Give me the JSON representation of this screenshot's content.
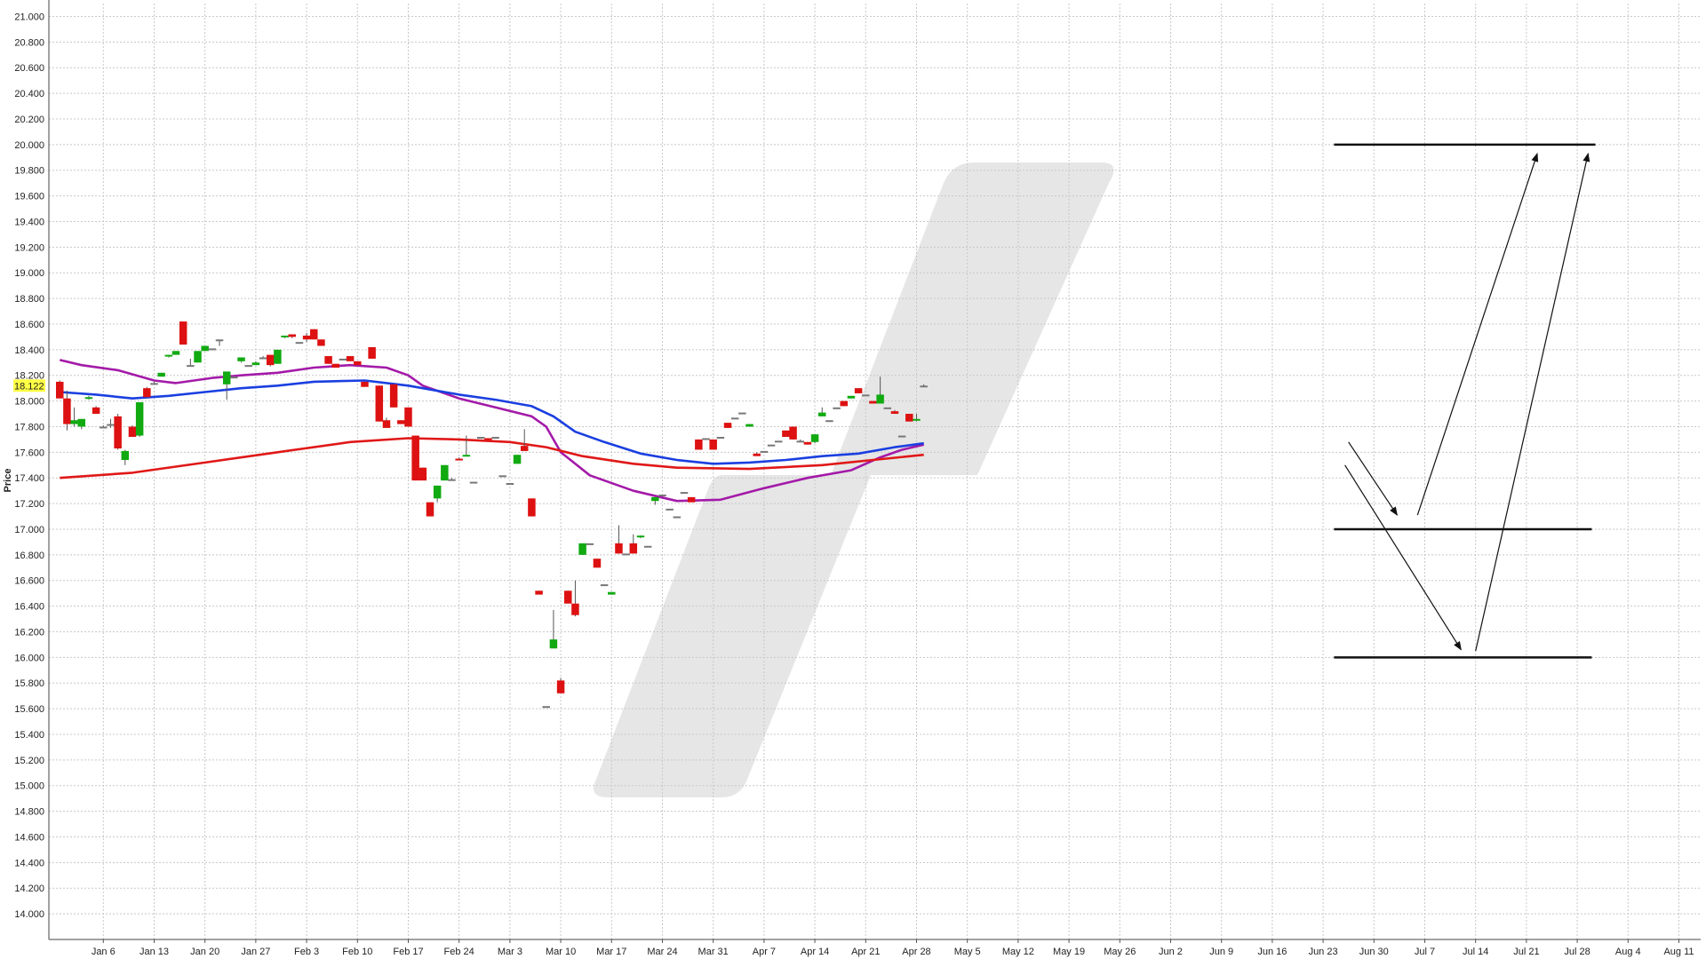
{
  "chart_data": {
    "type": "candlestick",
    "ylabel": "Price",
    "ylim": [
      13.8,
      21.1
    ],
    "y_ticks": [
      "14.000",
      "14.200",
      "14.400",
      "14.600",
      "14.800",
      "15.000",
      "15.200",
      "15.400",
      "15.600",
      "15.800",
      "16.000",
      "16.200",
      "16.400",
      "16.600",
      "16.800",
      "17.000",
      "17.200",
      "17.400",
      "17.600",
      "17.800",
      "18.000",
      "18.200",
      "18.400",
      "18.600",
      "18.800",
      "19.000",
      "19.200",
      "19.400",
      "19.600",
      "19.800",
      "20.000",
      "20.200",
      "20.400",
      "20.600",
      "20.800",
      "21.000"
    ],
    "x_ticks": [
      "Jan 6",
      "Jan 13",
      "Jan 20",
      "Jan 27",
      "Feb 3",
      "Feb 10",
      "Feb 17",
      "Feb 24",
      "Mar 3",
      "Mar 10",
      "Mar 17",
      "Mar 24",
      "Mar 31",
      "Apr 7",
      "Apr 14",
      "Apr 21",
      "Apr 28",
      "May 5",
      "May 12",
      "May 19",
      "May 26",
      "Jun 2",
      "Jun 9",
      "Jun 16",
      "Jun 23",
      "Jun 30",
      "Jul 7",
      "Jul 14",
      "Jul 21",
      "Jul 28",
      "Aug 4",
      "Aug 11"
    ],
    "x_tick_days": [
      6,
      13,
      20,
      27,
      34,
      41,
      48,
      55,
      62,
      69,
      76,
      83,
      90,
      97,
      104,
      111,
      118,
      125,
      132,
      139,
      146,
      153,
      160,
      167,
      174,
      181,
      188,
      195,
      202,
      209,
      216,
      223
    ],
    "xlim": [
      -1.5,
      226
    ],
    "current_price_label": "18.122",
    "colors": {
      "up": "#11aa11",
      "down": "#dd1111",
      "flat": "#777777",
      "ma_short": "#1a3fe0",
      "ma_mid": "#a31aa8",
      "ma_long": "#e01818",
      "label_bg": "#ffff44",
      "watermark": "#e6e6e6"
    },
    "candles": [
      [
        0,
        18.15,
        18.16,
        18.02,
        18.02
      ],
      [
        1,
        18.02,
        18.08,
        17.77,
        17.82
      ],
      [
        2,
        17.82,
        17.95,
        17.8,
        17.85
      ],
      [
        3,
        17.8,
        17.86,
        17.78,
        17.86
      ],
      [
        4,
        18.02,
        18.04,
        18.01,
        18.03
      ],
      [
        5,
        17.95,
        17.96,
        17.9,
        17.9
      ],
      [
        6,
        17.8,
        17.81,
        17.79,
        17.8
      ],
      [
        7,
        17.82,
        17.86,
        17.79,
        17.82
      ],
      [
        8,
        17.88,
        17.9,
        17.62,
        17.63
      ],
      [
        9,
        17.54,
        17.62,
        17.5,
        17.61
      ],
      [
        10,
        17.8,
        17.81,
        17.72,
        17.72
      ],
      [
        11,
        17.73,
        17.99,
        17.72,
        17.99
      ],
      [
        12,
        18.1,
        18.11,
        18.03,
        18.03
      ],
      [
        13,
        18.14,
        18.15,
        18.13,
        18.14
      ],
      [
        14,
        18.19,
        18.22,
        18.19,
        18.22
      ],
      [
        15,
        18.35,
        18.36,
        18.34,
        18.36
      ],
      [
        16,
        18.36,
        18.39,
        18.36,
        18.39
      ],
      [
        17,
        18.62,
        18.62,
        18.44,
        18.44
      ],
      [
        18,
        18.28,
        18.33,
        18.27,
        18.28
      ],
      [
        19,
        18.3,
        18.39,
        18.3,
        18.39
      ],
      [
        20,
        18.39,
        18.43,
        18.39,
        18.43
      ],
      [
        21,
        18.41,
        18.42,
        18.41,
        18.41
      ],
      [
        22,
        18.48,
        18.48,
        18.43,
        18.48
      ],
      [
        23,
        18.13,
        18.22,
        18.01,
        18.23
      ],
      [
        24,
        18.19,
        18.2,
        18.19,
        18.19
      ],
      [
        25,
        18.31,
        18.34,
        18.3,
        18.34
      ],
      [
        26,
        18.28,
        18.29,
        18.28,
        18.28
      ],
      [
        27,
        18.28,
        18.31,
        18.28,
        18.3
      ],
      [
        28,
        18.34,
        18.35,
        18.33,
        18.34
      ],
      [
        29,
        18.36,
        18.36,
        18.27,
        18.28
      ],
      [
        30,
        18.29,
        18.4,
        18.29,
        18.4
      ],
      [
        31,
        18.5,
        18.51,
        18.49,
        18.51
      ],
      [
        32,
        18.52,
        18.52,
        18.49,
        18.5
      ],
      [
        33,
        18.46,
        18.47,
        18.46,
        18.46
      ],
      [
        34,
        18.51,
        18.53,
        18.46,
        18.48
      ],
      [
        35,
        18.56,
        18.56,
        18.48,
        18.48
      ],
      [
        36,
        18.48,
        18.48,
        18.43,
        18.43
      ],
      [
        37,
        18.35,
        18.35,
        18.29,
        18.29
      ],
      [
        38,
        18.29,
        18.29,
        18.26,
        18.26
      ],
      [
        39,
        18.33,
        18.33,
        18.33,
        18.33
      ],
      [
        40,
        18.35,
        18.35,
        18.31,
        18.31
      ],
      [
        41,
        18.31,
        18.31,
        18.28,
        18.28
      ],
      [
        42,
        18.15,
        18.15,
        18.11,
        18.11
      ],
      [
        43,
        18.42,
        18.42,
        18.33,
        18.33
      ],
      [
        44,
        18.12,
        18.12,
        17.84,
        17.84
      ],
      [
        45,
        17.85,
        17.87,
        17.79,
        17.79
      ],
      [
        46,
        18.13,
        18.13,
        17.95,
        17.95
      ],
      [
        47,
        17.85,
        17.85,
        17.82,
        17.82
      ],
      [
        48,
        17.95,
        17.95,
        17.8,
        17.8
      ],
      [
        49,
        17.73,
        17.73,
        17.38,
        17.38
      ],
      [
        50,
        17.48,
        17.48,
        17.38,
        17.38
      ],
      [
        51,
        17.21,
        17.21,
        17.1,
        17.1
      ],
      [
        52,
        17.24,
        17.34,
        17.21,
        17.34
      ],
      [
        53,
        17.38,
        17.5,
        17.38,
        17.5
      ],
      [
        54,
        17.39,
        17.4,
        17.38,
        17.39
      ],
      [
        55,
        17.55,
        17.56,
        17.54,
        17.54
      ],
      [
        56,
        17.57,
        17.73,
        17.57,
        17.58
      ],
      [
        57,
        17.37,
        17.37,
        17.37,
        17.37
      ],
      [
        58,
        17.72,
        17.72,
        17.71,
        17.72
      ],
      [
        59,
        17.71,
        17.71,
        17.7,
        17.7
      ],
      [
        60,
        17.72,
        17.73,
        17.72,
        17.72
      ],
      [
        61,
        17.42,
        17.43,
        17.42,
        17.42
      ],
      [
        62,
        17.36,
        17.36,
        17.36,
        17.36
      ],
      [
        63,
        17.51,
        17.58,
        17.51,
        17.58
      ],
      [
        64,
        17.65,
        17.78,
        17.61,
        17.61
      ],
      [
        65,
        17.24,
        17.24,
        17.1,
        17.1
      ],
      [
        66,
        16.52,
        16.52,
        16.49,
        16.49
      ],
      [
        67,
        15.62,
        15.63,
        15.62,
        15.62
      ],
      [
        68,
        16.07,
        16.37,
        16.07,
        16.14
      ],
      [
        69,
        15.82,
        15.84,
        15.72,
        15.72
      ],
      [
        70,
        16.52,
        16.52,
        16.42,
        16.42
      ],
      [
        71,
        16.42,
        16.6,
        16.32,
        16.33
      ],
      [
        72,
        16.8,
        16.89,
        16.8,
        16.89
      ],
      [
        73,
        16.89,
        16.9,
        16.89,
        16.89
      ],
      [
        74,
        16.77,
        16.77,
        16.7,
        16.7
      ],
      [
        75,
        16.57,
        16.57,
        16.57,
        16.57
      ],
      [
        76,
        16.49,
        16.51,
        16.49,
        16.51
      ],
      [
        77,
        16.89,
        17.03,
        16.81,
        16.81
      ],
      [
        78,
        16.81,
        16.82,
        16.81,
        16.81
      ],
      [
        79,
        16.89,
        16.96,
        16.81,
        16.81
      ],
      [
        80,
        16.94,
        16.95,
        16.93,
        16.95
      ],
      [
        81,
        16.87,
        16.87,
        16.87,
        16.87
      ],
      [
        82,
        17.22,
        17.25,
        17.19,
        17.25
      ],
      [
        83,
        17.27,
        17.27,
        17.26,
        17.27
      ],
      [
        84,
        17.16,
        17.16,
        17.16,
        17.16
      ],
      [
        85,
        17.1,
        17.1,
        17.1,
        17.1
      ],
      [
        86,
        17.29,
        17.29,
        17.29,
        17.29
      ],
      [
        87,
        17.25,
        17.25,
        17.21,
        17.21
      ],
      [
        88,
        17.7,
        17.7,
        17.62,
        17.62
      ],
      [
        89,
        17.71,
        17.71,
        17.71,
        17.71
      ],
      [
        90,
        17.7,
        17.7,
        17.62,
        17.62
      ],
      [
        91,
        17.72,
        17.73,
        17.72,
        17.72
      ],
      [
        92,
        17.83,
        17.83,
        17.79,
        17.79
      ],
      [
        93,
        17.87,
        17.88,
        17.87,
        17.87
      ],
      [
        94,
        17.91,
        17.91,
        17.91,
        17.91
      ],
      [
        95,
        17.8,
        17.82,
        17.8,
        17.82
      ],
      [
        96,
        17.59,
        17.6,
        17.57,
        17.57
      ],
      [
        97,
        17.61,
        17.62,
        17.61,
        17.61
      ],
      [
        98,
        17.66,
        17.67,
        17.66,
        17.66
      ],
      [
        99,
        17.69,
        17.69,
        17.69,
        17.69
      ],
      [
        100,
        17.77,
        17.77,
        17.72,
        17.72
      ],
      [
        101,
        17.8,
        17.8,
        17.7,
        17.7
      ],
      [
        102,
        17.69,
        17.7,
        17.68,
        17.69
      ],
      [
        103,
        17.68,
        17.68,
        17.66,
        17.66
      ],
      [
        104,
        17.68,
        17.74,
        17.67,
        17.74
      ],
      [
        105,
        17.88,
        17.95,
        17.88,
        17.91
      ],
      [
        106,
        17.85,
        17.85,
        17.85,
        17.85
      ],
      [
        107,
        17.95,
        17.96,
        17.95,
        17.95
      ],
      [
        108,
        18.0,
        18.0,
        17.96,
        17.96
      ],
      [
        109,
        18.02,
        18.04,
        18.02,
        18.04
      ],
      [
        110,
        18.1,
        18.1,
        18.06,
        18.06
      ],
      [
        111,
        18.05,
        18.05,
        18.04,
        18.05
      ],
      [
        112,
        18.0,
        18.0,
        17.98,
        17.98
      ],
      [
        113,
        17.98,
        18.19,
        17.98,
        18.05
      ],
      [
        114,
        17.95,
        17.96,
        17.95,
        17.95
      ],
      [
        115,
        17.92,
        17.93,
        17.9,
        17.9
      ],
      [
        116,
        17.73,
        17.73,
        17.73,
        17.73
      ],
      [
        117,
        17.9,
        17.9,
        17.84,
        17.84
      ],
      [
        118,
        17.85,
        17.9,
        17.84,
        17.86
      ],
      [
        119,
        18.12,
        18.13,
        18.11,
        18.12
      ]
    ],
    "series": [
      {
        "key": "ma_mid",
        "points": [
          [
            0,
            18.32
          ],
          [
            3,
            18.28
          ],
          [
            8,
            18.24
          ],
          [
            13,
            18.16
          ],
          [
            16,
            18.14
          ],
          [
            21,
            18.18
          ],
          [
            25,
            18.2
          ],
          [
            30,
            18.22
          ],
          [
            35,
            18.26
          ],
          [
            40,
            18.28
          ],
          [
            45,
            18.26
          ],
          [
            48,
            18.2
          ],
          [
            50,
            18.12
          ],
          [
            55,
            18.02
          ],
          [
            60,
            17.95
          ],
          [
            65,
            17.88
          ],
          [
            67,
            17.8
          ],
          [
            69,
            17.6
          ],
          [
            73,
            17.42
          ],
          [
            79,
            17.3
          ],
          [
            85,
            17.22
          ],
          [
            91,
            17.23
          ],
          [
            97,
            17.32
          ],
          [
            103,
            17.4
          ],
          [
            109,
            17.46
          ],
          [
            113,
            17.56
          ],
          [
            116,
            17.62
          ],
          [
            119,
            17.66
          ]
        ]
      },
      {
        "key": "ma_short",
        "points": [
          [
            0,
            18.07
          ],
          [
            5,
            18.05
          ],
          [
            10,
            18.02
          ],
          [
            15,
            18.04
          ],
          [
            20,
            18.07
          ],
          [
            25,
            18.1
          ],
          [
            30,
            18.12
          ],
          [
            35,
            18.15
          ],
          [
            42,
            18.16
          ],
          [
            48,
            18.12
          ],
          [
            55,
            18.05
          ],
          [
            60,
            18.01
          ],
          [
            65,
            17.96
          ],
          [
            68,
            17.88
          ],
          [
            71,
            17.76
          ],
          [
            75,
            17.68
          ],
          [
            80,
            17.59
          ],
          [
            85,
            17.54
          ],
          [
            90,
            17.51
          ],
          [
            95,
            17.52
          ],
          [
            100,
            17.54
          ],
          [
            105,
            17.57
          ],
          [
            110,
            17.59
          ],
          [
            115,
            17.64
          ],
          [
            119,
            17.67
          ]
        ]
      },
      {
        "key": "ma_long",
        "points": [
          [
            0,
            17.4
          ],
          [
            10,
            17.44
          ],
          [
            20,
            17.52
          ],
          [
            30,
            17.6
          ],
          [
            40,
            17.68
          ],
          [
            48,
            17.71
          ],
          [
            55,
            17.7
          ],
          [
            62,
            17.68
          ],
          [
            67,
            17.64
          ],
          [
            72,
            17.57
          ],
          [
            79,
            17.51
          ],
          [
            85,
            17.48
          ],
          [
            95,
            17.47
          ],
          [
            105,
            17.5
          ],
          [
            112,
            17.54
          ],
          [
            119,
            17.58
          ]
        ]
      }
    ],
    "projection_levels": [
      {
        "value": 20.0,
        "from": 175.5,
        "to": 211.5
      },
      {
        "value": 17.0,
        "from": 175.5,
        "to": 211
      },
      {
        "value": 16.0,
        "from": 175.5,
        "to": 211
      }
    ],
    "projection_arrows": [
      {
        "from": [
          177.5,
          17.68
        ],
        "to": [
          184.2,
          17.11
        ]
      },
      {
        "from": [
          177,
          17.5
        ],
        "to": [
          193,
          16.06
        ]
      },
      {
        "from": [
          187,
          17.11
        ],
        "to": [
          203.5,
          19.93
        ]
      },
      {
        "from": [
          195,
          16.05
        ],
        "to": [
          210.5,
          19.93
        ]
      }
    ]
  }
}
